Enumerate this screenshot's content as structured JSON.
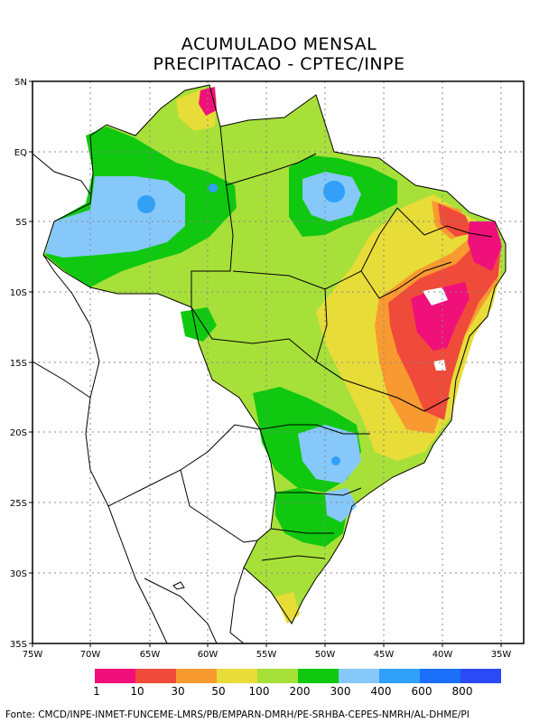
{
  "title_line1": "ACUMULADO MENSAL",
  "title_line2": "PRECIPITACAO - CPTEC/INPE",
  "lat_labels": [
    "5N",
    "EQ",
    "5S",
    "10S",
    "15S",
    "20S",
    "25S",
    "30S",
    "35S"
  ],
  "lon_labels": [
    "75W",
    "70W",
    "65W",
    "60W",
    "55W",
    "50W",
    "45W",
    "40W",
    "35W"
  ],
  "legend": {
    "colors": [
      "#f0107a",
      "#f04a3a",
      "#f89a30",
      "#e8dc38",
      "#a8e03a",
      "#10c810",
      "#86c8fa",
      "#30a0f8",
      "#1a70f8",
      "#2a4af8"
    ],
    "ticks": [
      "1",
      "10",
      "30",
      "50",
      "100",
      "200",
      "300",
      "400",
      "600",
      "800"
    ]
  },
  "fonte": "Fonte: CMCD/INPE-INMET-FUNCEME-LMRS/PB/EMPARN-DMRH/PE-SRHBA-CEPES-NMRH/AL-DHME/PI"
}
